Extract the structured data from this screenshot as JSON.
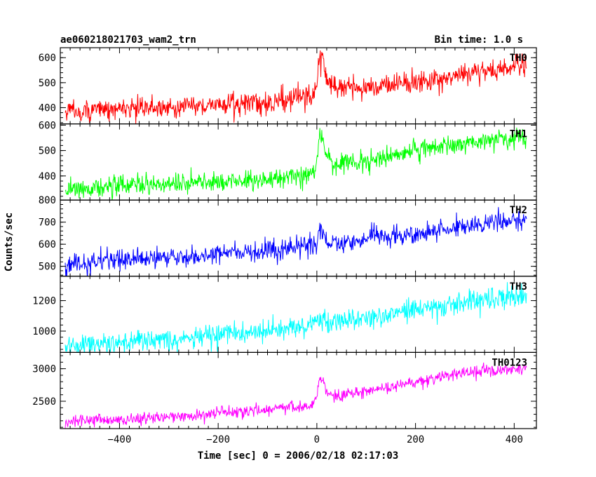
{
  "header": {
    "title": "ae060218021703_wam2_trn",
    "bin_time": "Bin time: 1.0 s"
  },
  "chart_data": {
    "type": "line",
    "title": "ae060218021703_wam2_trn",
    "xlabel": "Time [sec] 0 = 2006/02/18 02:17:03",
    "ylabel": "Counts/sec",
    "xlim": [
      -520,
      445
    ],
    "x_ticks": [
      -400,
      -200,
      0,
      200,
      400
    ],
    "x_tick_labels": [
      "−400",
      "−200",
      "0",
      "200",
      "400"
    ],
    "x_range": [
      -510,
      425
    ],
    "bin_time_s": 1.0,
    "panels": [
      {
        "name": "TH0",
        "color": "#ff0000",
        "ylim": [
          335,
          640
        ],
        "y_ticks": [
          400,
          500,
          600
        ],
        "y_tick_labels": [
          "400",
          "500",
          "600"
        ],
        "trend": [
          [
            -510,
            385
          ],
          [
            -100,
            420
          ],
          [
            -10,
            450
          ],
          [
            0,
            490
          ],
          [
            5,
            600
          ],
          [
            12,
            610
          ],
          [
            20,
            500
          ],
          [
            40,
            475
          ],
          [
            100,
            480
          ],
          [
            200,
            505
          ],
          [
            300,
            535
          ],
          [
            425,
            565
          ]
        ],
        "noise_sd": 22
      },
      {
        "name": "TH1",
        "color": "#00ff00",
        "ylim": [
          305,
          605
        ],
        "y_ticks": [
          400,
          500,
          600
        ],
        "y_tick_labels": [
          "400",
          "500",
          "600"
        ],
        "trend": [
          [
            -510,
            350
          ],
          [
            -100,
            385
          ],
          [
            -10,
            410
          ],
          [
            0,
            440
          ],
          [
            5,
            560
          ],
          [
            10,
            575
          ],
          [
            20,
            470
          ],
          [
            40,
            440
          ],
          [
            100,
            460
          ],
          [
            200,
            500
          ],
          [
            300,
            530
          ],
          [
            425,
            555
          ]
        ],
        "noise_sd": 20
      },
      {
        "name": "TH2",
        "color": "#0000ff",
        "ylim": [
          455,
          800
        ],
        "y_ticks": [
          500,
          600,
          700,
          800
        ],
        "y_tick_labels": [
          "500",
          "600",
          "700",
          "800"
        ],
        "trend": [
          [
            -510,
            510
          ],
          [
            -100,
            570
          ],
          [
            -10,
            595
          ],
          [
            0,
            605
          ],
          [
            5,
            680
          ],
          [
            10,
            670
          ],
          [
            20,
            610
          ],
          [
            40,
            600
          ],
          [
            100,
            625
          ],
          [
            200,
            650
          ],
          [
            300,
            685
          ],
          [
            425,
            715
          ]
        ],
        "noise_sd": 23
      },
      {
        "name": "TH3",
        "color": "#00ffff",
        "ylim": [
          860,
          1360
        ],
        "y_ticks": [
          1000,
          1200
        ],
        "y_tick_labels": [
          "1000",
          "1200"
        ],
        "trend": [
          [
            -510,
            910
          ],
          [
            -300,
            940
          ],
          [
            -100,
            1000
          ],
          [
            0,
            1050
          ],
          [
            100,
            1090
          ],
          [
            200,
            1140
          ],
          [
            300,
            1190
          ],
          [
            425,
            1240
          ]
        ],
        "noise_sd": 36
      },
      {
        "name": "TH0123",
        "color": "#ff00ff",
        "ylim": [
          2080,
          3250
        ],
        "y_ticks": [
          2500,
          3000
        ],
        "y_tick_labels": [
          "2500",
          "3000"
        ],
        "trend": [
          [
            -510,
            2190
          ],
          [
            -300,
            2250
          ],
          [
            -100,
            2380
          ],
          [
            -10,
            2450
          ],
          [
            0,
            2560
          ],
          [
            5,
            2830
          ],
          [
            12,
            2860
          ],
          [
            20,
            2640
          ],
          [
            40,
            2580
          ],
          [
            100,
            2660
          ],
          [
            200,
            2790
          ],
          [
            300,
            2920
          ],
          [
            425,
            3010
          ]
        ],
        "noise_sd": 48
      }
    ]
  }
}
